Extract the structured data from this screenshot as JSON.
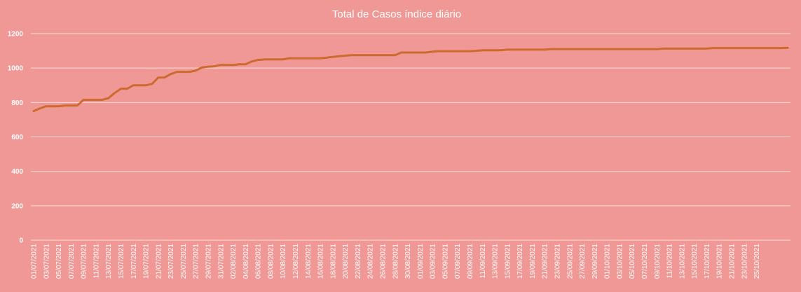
{
  "chart_data": {
    "type": "line",
    "title": "Total de Casos índice diário",
    "xlabel": "",
    "ylabel": "",
    "ylim": [
      0,
      1200
    ],
    "yticks": [
      0,
      200,
      400,
      600,
      800,
      1000,
      1200
    ],
    "grid": true,
    "line_color": "#cd6b2e",
    "x_tick_labels": [
      "01/07/2021",
      "03/07/2021",
      "05/07/2021",
      "07/07/2021",
      "09/07/2021",
      "11/07/2021",
      "13/07/2021",
      "15/07/2021",
      "17/07/2021",
      "19/07/2021",
      "21/07/2021",
      "23/07/2021",
      "25/07/2021",
      "27/07/2021",
      "29/07/2021",
      "31/07/2021",
      "02/08/2021",
      "04/08/2021",
      "06/08/2021",
      "08/08/2021",
      "10/08/2021",
      "12/08/2021",
      "14/08/2021",
      "16/08/2021",
      "18/08/2021",
      "20/08/2021",
      "22/08/2021",
      "24/08/2021",
      "26/08/2021",
      "28/08/2021",
      "30/08/2021",
      "01/09/2021",
      "03/09/2021",
      "05/09/2021",
      "07/09/2021",
      "09/09/2021",
      "11/09/2021",
      "13/09/2021",
      "15/09/2021",
      "17/09/2021",
      "19/09/2021",
      "21/09/2021",
      "23/09/2021",
      "25/09/2021",
      "27/09/2021",
      "29/09/2021",
      "01/10/2021",
      "03/10/2021",
      "05/10/2021",
      "07/10/2021",
      "09/10/2021",
      "11/10/2021",
      "13/10/2021",
      "15/10/2021",
      "17/10/2021",
      "19/10/2021",
      "21/10/2021",
      "23/10/2021",
      "25/10/2021"
    ],
    "series": [
      {
        "name": "",
        "start_date": "01/07/2021",
        "values": [
          750,
          765,
          778,
          778,
          778,
          782,
          782,
          782,
          815,
          815,
          815,
          815,
          825,
          855,
          880,
          880,
          900,
          900,
          900,
          908,
          945,
          945,
          965,
          978,
          978,
          978,
          985,
          1003,
          1008,
          1010,
          1018,
          1018,
          1018,
          1022,
          1022,
          1038,
          1047,
          1050,
          1050,
          1050,
          1050,
          1057,
          1057,
          1057,
          1057,
          1057,
          1057,
          1060,
          1065,
          1068,
          1072,
          1075,
          1075,
          1075,
          1075,
          1075,
          1075,
          1075,
          1075,
          1090,
          1090,
          1090,
          1090,
          1090,
          1095,
          1098,
          1098,
          1098,
          1098,
          1098,
          1098,
          1100,
          1103,
          1103,
          1103,
          1103,
          1107,
          1107,
          1107,
          1107,
          1107,
          1107,
          1107,
          1110,
          1110,
          1110,
          1110,
          1110,
          1110,
          1110,
          1110,
          1110,
          1110,
          1110,
          1110,
          1110,
          1110,
          1110,
          1110,
          1110,
          1110,
          1113,
          1113,
          1113,
          1113,
          1113,
          1113,
          1113,
          1113,
          1116,
          1116,
          1116,
          1116,
          1116,
          1116,
          1116,
          1116,
          1116,
          1116,
          1116,
          1116,
          1118
        ]
      }
    ]
  }
}
